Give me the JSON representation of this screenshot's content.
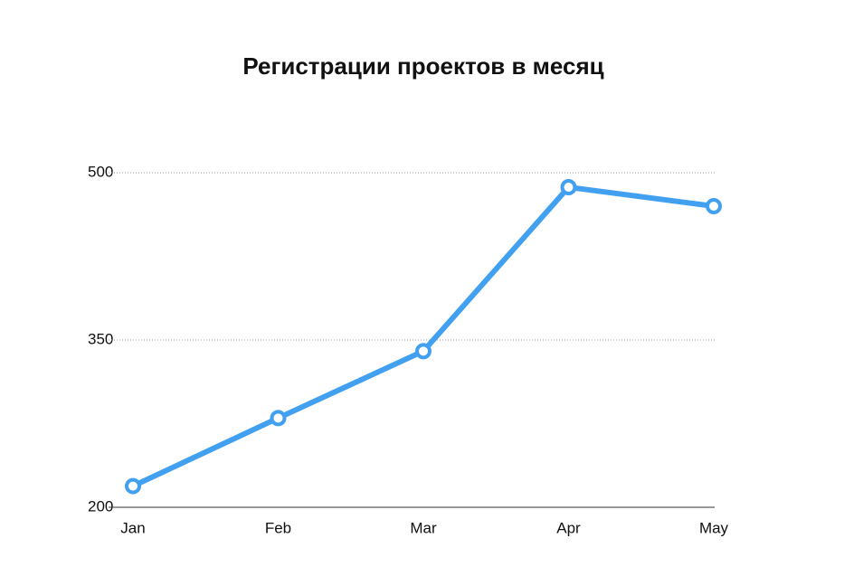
{
  "chart_data": {
    "type": "line",
    "title": "Регистрации проектов в месяц",
    "categories": [
      "Jan",
      "Feb",
      "Mar",
      "Apr",
      "May"
    ],
    "values": [
      219,
      280,
      340,
      487,
      470
    ],
    "color": "#42a0f0",
    "ylim": [
      200,
      500
    ],
    "yticks": [
      200,
      350,
      500
    ],
    "grid": true
  }
}
